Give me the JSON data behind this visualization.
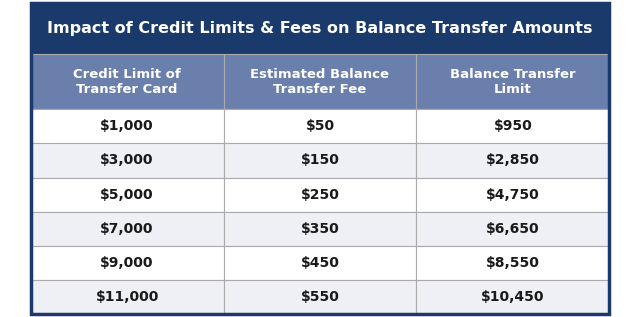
{
  "title": "Impact of Credit Limits & Fees on Balance Transfer Amounts",
  "col_headers": [
    "Credit Limit of\nTransfer Card",
    "Estimated Balance\nTransfer Fee",
    "Balance Transfer\nLimit"
  ],
  "rows": [
    [
      "$1,000",
      "$50",
      "$950"
    ],
    [
      "$3,000",
      "$150",
      "$2,850"
    ],
    [
      "$5,000",
      "$250",
      "$4,750"
    ],
    [
      "$7,000",
      "$350",
      "$6,650"
    ],
    [
      "$9,000",
      "$450",
      "$8,550"
    ],
    [
      "$11,000",
      "$550",
      "$10,450"
    ]
  ],
  "title_bg": "#1a3a6b",
  "title_color": "#ffffff",
  "header_bg": "#6b7fad",
  "header_color": "#ffffff",
  "row_bg_odd": "#ffffff",
  "row_bg_even": "#eef0f5",
  "cell_text_color": "#1a1a1a",
  "border_color": "#aaaaaa",
  "outer_border_color": "#1a3a6b"
}
